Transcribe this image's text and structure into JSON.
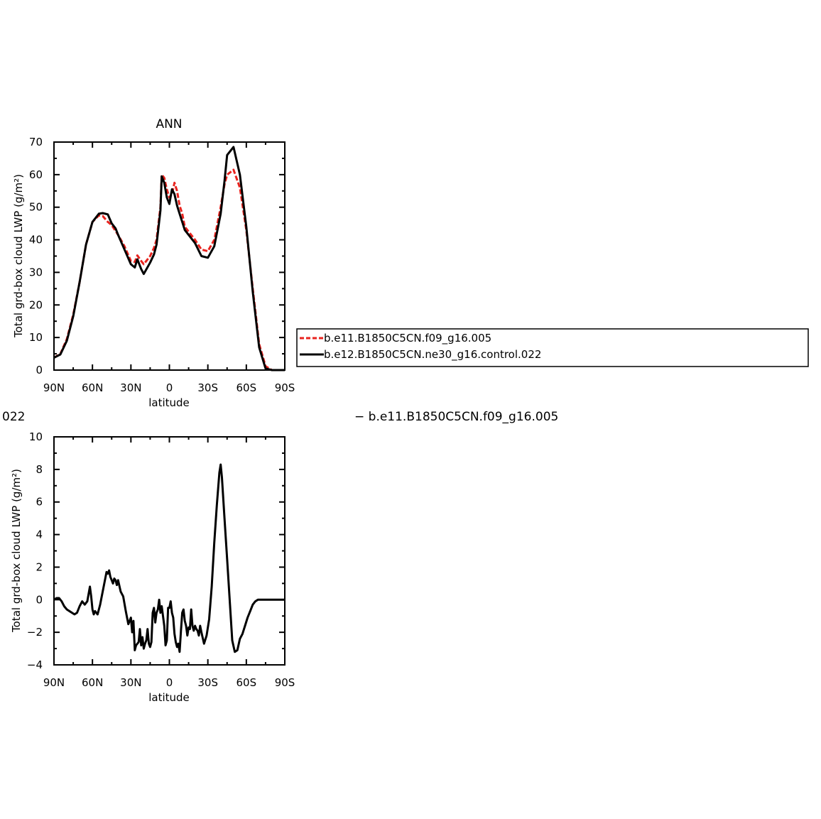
{
  "chart_data": [
    {
      "type": "line",
      "title": "ANN",
      "xlabel": "latitude",
      "ylabel": "Total grd-box cloud LWP (g/m²)",
      "xlim": [
        90,
        -90
      ],
      "ylim": [
        0,
        70
      ],
      "xticks": [
        90,
        60,
        30,
        0,
        -30,
        -60,
        -90
      ],
      "xtick_labels": [
        "90N",
        "60N",
        "30N",
        "0",
        "30S",
        "60S",
        "90S"
      ],
      "yticks": [
        0,
        10,
        20,
        30,
        40,
        50,
        60,
        70
      ],
      "ytick_labels": [
        "0",
        "10",
        "20",
        "30",
        "40",
        "50",
        "60",
        "70"
      ],
      "grid": false,
      "legend_position": "right",
      "series": [
        {
          "name": "b.e11.B1850C5CN.f09_g16.005",
          "color": "#e8231e",
          "dash": "dashed",
          "x": [
            90,
            85,
            80,
            75,
            70,
            65,
            60,
            55,
            52,
            48,
            45,
            40,
            35,
            30,
            27,
            25,
            22,
            20,
            15,
            12,
            10,
            7,
            6,
            4,
            2,
            0,
            -2,
            -4,
            -6,
            -8,
            -10,
            -12,
            -15,
            -20,
            -25,
            -30,
            -35,
            -40,
            -43,
            -45,
            -50,
            -55,
            -60,
            -65,
            -70,
            -75,
            -80,
            -85,
            -90
          ],
          "y": [
            3.8,
            5.0,
            9.5,
            17,
            27,
            38.5,
            45.5,
            47.5,
            47.3,
            45.5,
            44.5,
            41.5,
            38,
            33.5,
            33.2,
            35.2,
            33.5,
            32.5,
            35,
            37.5,
            40,
            50,
            60,
            59,
            55.5,
            53,
            54,
            57.5,
            55,
            50.5,
            48,
            44,
            42.5,
            40,
            37,
            36.5,
            40,
            50,
            57,
            60,
            61.5,
            56,
            43,
            25,
            8,
            1.2,
            0,
            0,
            0
          ]
        },
        {
          "name": "b.e12.B1850C5CN.ne30_g16.control.022",
          "color": "#000000",
          "dash": "solid",
          "x": [
            90,
            85,
            80,
            75,
            70,
            65,
            60,
            55,
            52,
            48,
            45,
            42,
            40,
            35,
            30,
            27,
            25,
            22,
            20,
            15,
            12,
            10,
            7,
            6,
            4,
            2,
            0,
            -2,
            -4,
            -6,
            -8,
            -10,
            -12,
            -15,
            -20,
            -25,
            -30,
            -35,
            -40,
            -43,
            -45,
            -50,
            -55,
            -60,
            -65,
            -70,
            -75,
            -80,
            -85,
            -90
          ],
          "y": [
            3.8,
            4.8,
            9,
            16.5,
            27,
            38.5,
            45.5,
            48,
            48.2,
            47.8,
            45,
            43.5,
            41.5,
            37,
            32.5,
            31.5,
            34,
            31,
            29.5,
            33,
            35.5,
            38.5,
            49,
            59.5,
            57.5,
            53,
            51,
            55.5,
            54,
            50.5,
            48,
            45.5,
            43,
            41.5,
            39,
            35,
            34.5,
            38,
            48,
            58,
            66,
            68.5,
            60,
            44,
            24,
            7,
            0.5,
            0,
            0,
            0
          ]
        }
      ]
    },
    {
      "type": "line",
      "title": "",
      "xlabel": "latitude",
      "ylabel": "Total grd-box cloud LWP (g/m²)",
      "xlim": [
        90,
        -90
      ],
      "ylim": [
        -4,
        10
      ],
      "xticks": [
        90,
        60,
        30,
        0,
        -30,
        -60,
        -90
      ],
      "xtick_labels": [
        "90N",
        "60N",
        "30N",
        "0",
        "30S",
        "60S",
        "90S"
      ],
      "yticks": [
        -4,
        -2,
        0,
        2,
        4,
        6,
        8,
        10
      ],
      "ytick_labels": [
        "−4",
        "−2",
        "0",
        "2",
        "4",
        "6",
        "8",
        "10"
      ],
      "grid": false,
      "header_left": "022",
      "header_right": "− b.e11.B1850C5CN.f09_g16.005",
      "series": [
        {
          "color": "#000000",
          "dash": "solid",
          "x": [
            90,
            88,
            86,
            84,
            82,
            80,
            78,
            76,
            74,
            72,
            70,
            68,
            66,
            64,
            62,
            61,
            60,
            59,
            58,
            56,
            54,
            52,
            50,
            49,
            48,
            47,
            46,
            45,
            44,
            43,
            42,
            41,
            40,
            38,
            36,
            34,
            32,
            30,
            29,
            28,
            27,
            26,
            25,
            24,
            23,
            22,
            21,
            20,
            19,
            18,
            17,
            16,
            15,
            14,
            13,
            12,
            11,
            10,
            9,
            8,
            7,
            6,
            5,
            4,
            3,
            2,
            1,
            0,
            -1,
            -2,
            -3,
            -4,
            -5,
            -6,
            -7,
            -8,
            -9,
            -10,
            -11,
            -12,
            -13,
            -14,
            -15,
            -16,
            -17,
            -18,
            -19,
            -20,
            -21,
            -22,
            -23,
            -24,
            -25,
            -27,
            -29,
            -31,
            -33,
            -35,
            -37,
            -39,
            -40,
            -41,
            -43,
            -45,
            -47,
            -49,
            -51,
            -53,
            -55,
            -57,
            -59,
            -61,
            -63,
            -65,
            -67,
            -69,
            -71,
            -73,
            -75,
            -80,
            -85,
            -90
          ],
          "y": [
            0,
            0.1,
            0.1,
            -0.1,
            -0.4,
            -0.6,
            -0.7,
            -0.8,
            -0.9,
            -0.8,
            -0.4,
            -0.1,
            -0.3,
            -0.1,
            0.8,
            0.2,
            -0.6,
            -0.9,
            -0.7,
            -0.9,
            -0.3,
            0.5,
            1.3,
            1.7,
            1.6,
            1.8,
            1.4,
            1.2,
            1.0,
            1.3,
            1.2,
            0.9,
            1.2,
            0.5,
            0.2,
            -0.7,
            -1.5,
            -1.1,
            -2.0,
            -1.3,
            -3.1,
            -2.8,
            -2.7,
            -2.6,
            -1.8,
            -2.8,
            -2.3,
            -3.0,
            -2.7,
            -2.5,
            -1.8,
            -2.7,
            -2.9,
            -2.6,
            -0.8,
            -0.5,
            -1.4,
            -0.8,
            -0.6,
            0,
            -0.8,
            -0.4,
            -1.0,
            -1.6,
            -2.8,
            -2.5,
            -0.5,
            -0.5,
            -0.1,
            -0.8,
            -1.1,
            -2.1,
            -2.6,
            -2.9,
            -2.7,
            -3.2,
            -1.9,
            -0.8,
            -0.6,
            -1.3,
            -1.6,
            -2.2,
            -1.7,
            -1.8,
            -0.6,
            -1.6,
            -1.9,
            -1.6,
            -1.8,
            -1.9,
            -2.2,
            -1.6,
            -2.0,
            -2.7,
            -2.2,
            -1.2,
            0.8,
            3.5,
            5.8,
            7.8,
            8.3,
            7.5,
            5.0,
            2.5,
            0,
            -2.5,
            -3.2,
            -3.1,
            -2.4,
            -2.1,
            -1.6,
            -1.1,
            -0.7,
            -0.3,
            -0.1,
            0,
            0,
            0,
            0,
            0,
            0,
            0
          ]
        }
      ]
    }
  ]
}
